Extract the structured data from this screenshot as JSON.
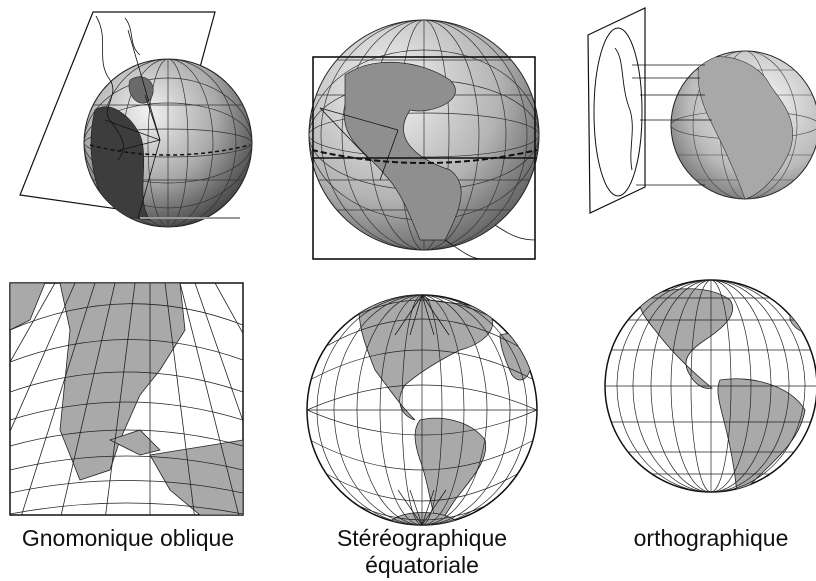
{
  "captions": {
    "gnomonic": "Gnomonique oblique",
    "stereo_line1": "Stéréographique",
    "stereo_line2": "équatoriale",
    "ortho": "orthographique"
  },
  "colors": {
    "globe_dark": "#4a4a4a",
    "globe_light": "#d8d8d8",
    "land_fill": "#b8b8b8",
    "grid": "#222222",
    "background": "#ffffff"
  }
}
